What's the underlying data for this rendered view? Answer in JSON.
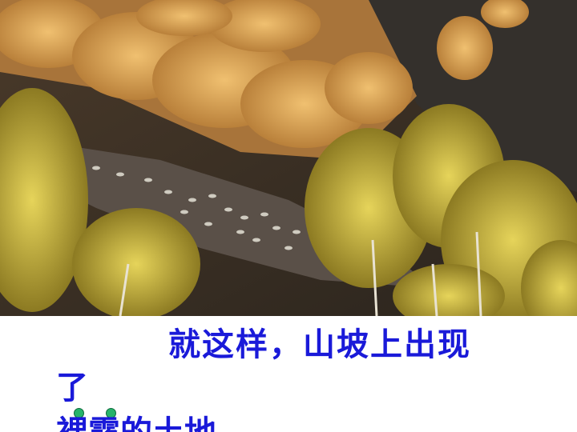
{
  "photo": {
    "subject": "autumn-hillside-with-sheep-and-birch-trees",
    "colors": {
      "dark_slope": "#3a3026",
      "golden_foliage": "#d9a64a",
      "yellow_birch": "#c9b13a",
      "sheep": "#cfcbc0"
    }
  },
  "caption": {
    "line1": "就这样，山坡上出现",
    "line2": "了",
    "line3": "裸露的土地",
    "text_color": "#1a1ad9",
    "marker_color": "#27b36b"
  }
}
